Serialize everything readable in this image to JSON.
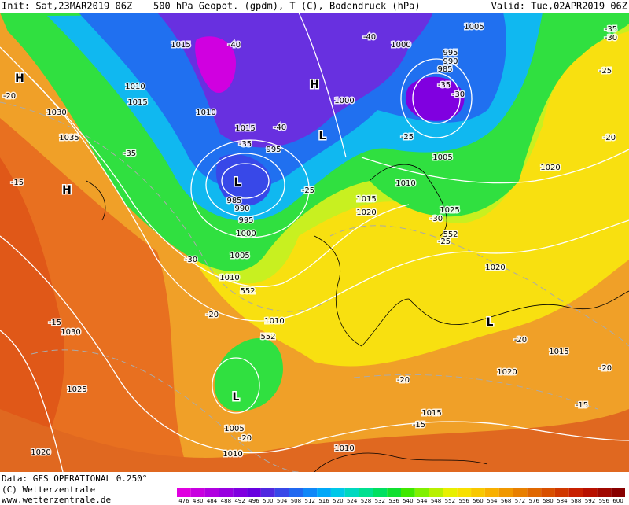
{
  "header": {
    "init": "Init: Sat,23MAR2019 06Z",
    "title": "500 hPa Geopot. (gpdm), T (C), Bodendruck (hPa)",
    "valid": "Valid: Tue,02APR2019 06Z"
  },
  "footer": {
    "data": "Data: GFS OPERATIONAL 0.250°",
    "copyright": "(C) Wetterzentrale",
    "url": "www.wetterzentrale.de"
  },
  "scale": {
    "ticks": [
      476,
      480,
      484,
      488,
      492,
      496,
      500,
      504,
      508,
      512,
      516,
      520,
      524,
      528,
      532,
      536,
      540,
      544,
      548,
      552,
      556,
      560,
      564,
      568,
      572,
      576,
      580,
      584,
      588,
      592,
      596,
      600
    ],
    "colors": [
      "#e000e0",
      "#c800e0",
      "#b000e0",
      "#9800e0",
      "#8000e0",
      "#6800e0",
      "#5028e0",
      "#3848e8",
      "#2068f0",
      "#1088f8",
      "#00a8f8",
      "#00c8e8",
      "#00d8c0",
      "#00e090",
      "#00e060",
      "#10e030",
      "#40e800",
      "#80f000",
      "#b8f000",
      "#e8f000",
      "#f8e000",
      "#f8c800",
      "#f8b000",
      "#f09800",
      "#e88000",
      "#e06800",
      "#d85000",
      "#d03800",
      "#c82000",
      "#b81000",
      "#a00800",
      "#880000"
    ]
  },
  "map_labels": [
    "1015",
    "-40",
    "1010",
    "1015",
    "1010",
    "1030",
    "1035",
    "-35",
    "H",
    "-20",
    "H",
    "1000",
    "1000",
    "995",
    "990",
    "985",
    "-35",
    "-30",
    "-40",
    "1005",
    "-35",
    "-30",
    "-25",
    "L",
    "1015",
    "-40",
    "-35",
    "995",
    "L",
    "985",
    "990",
    "995",
    "1000",
    "-25",
    "1010",
    "1005",
    "-25",
    "1015",
    "1020",
    "1025",
    "-30",
    "552",
    "-25",
    "1020",
    "-20",
    "1020",
    "-15",
    "H",
    "-30",
    "1005",
    "1010",
    "552",
    "-20",
    "1010",
    "552",
    "L",
    "1005",
    "-20",
    "1010",
    "1010",
    "-15",
    "1015",
    "-20",
    "1020",
    "-15",
    "-20",
    "1015",
    "-20",
    "L",
    "-15",
    "1030",
    "1025",
    "1020"
  ]
}
